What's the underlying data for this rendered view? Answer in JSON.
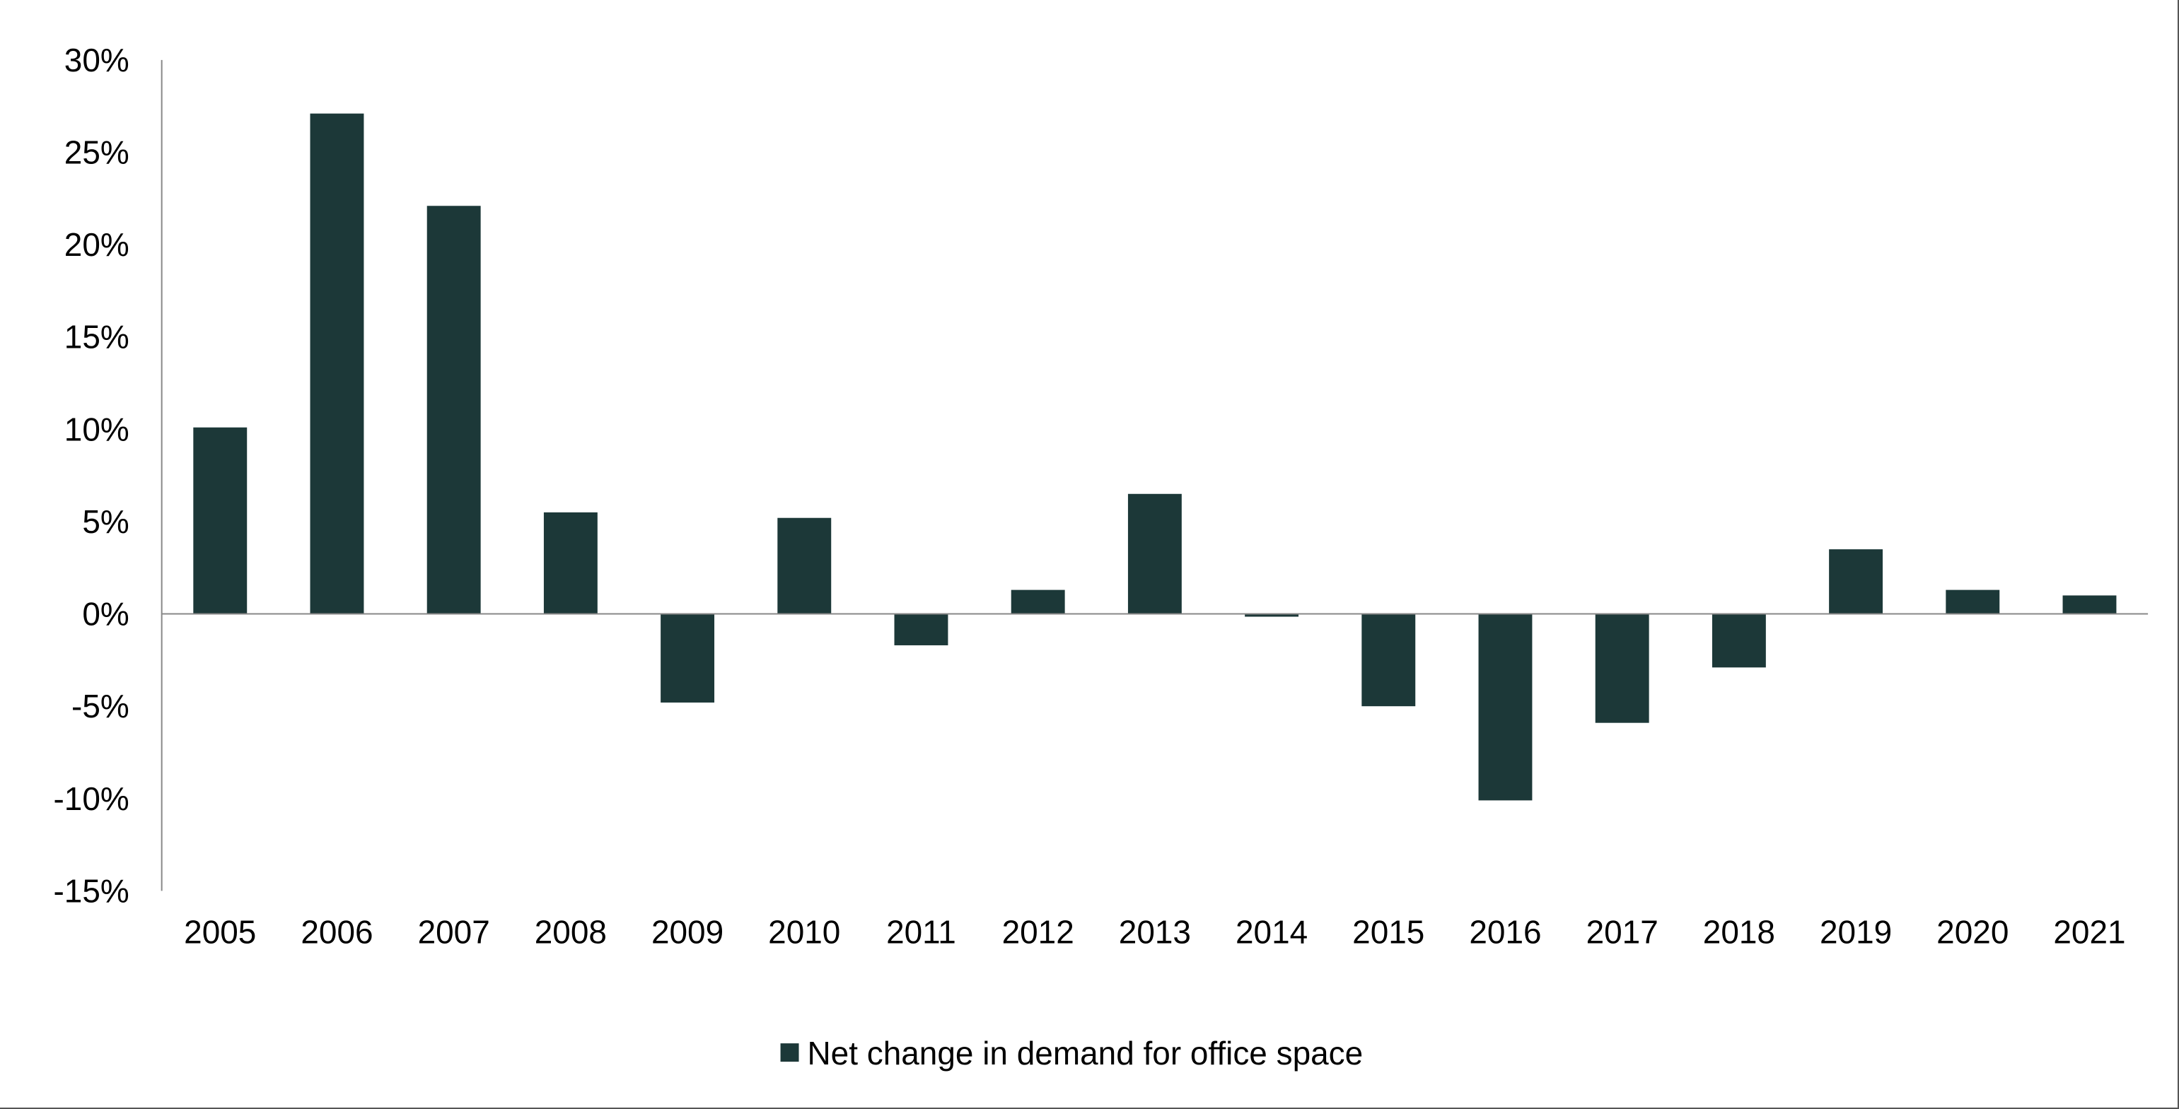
{
  "chart_data": {
    "type": "bar",
    "title": "",
    "xlabel": "",
    "ylabel": "",
    "categories": [
      "2005",
      "2006",
      "2007",
      "2008",
      "2009",
      "2010",
      "2011",
      "2012",
      "2013",
      "2014",
      "2015",
      "2016",
      "2017",
      "2018",
      "2019",
      "2020",
      "2021"
    ],
    "series": [
      {
        "name": "Net change in demand for office space",
        "values": [
          10.1,
          27.1,
          22.1,
          5.5,
          -4.8,
          5.2,
          -1.7,
          1.3,
          6.5,
          -0.15,
          -5.0,
          -10.1,
          -5.9,
          -2.9,
          3.5,
          1.3,
          1.0
        ],
        "color": "#1c3838"
      }
    ],
    "ylim": [
      -15,
      30
    ],
    "yticks": [
      30,
      25,
      20,
      15,
      10,
      5,
      0,
      -5,
      -10,
      -15
    ],
    "ytick_labels": [
      "30%",
      "25%",
      "20%",
      "15%",
      "10%",
      "5%",
      "0%",
      "-5%",
      "-10%",
      "-15%"
    ],
    "grid": false,
    "legend": {
      "placement": "bottom",
      "label": "Net change in demand for office space"
    }
  }
}
